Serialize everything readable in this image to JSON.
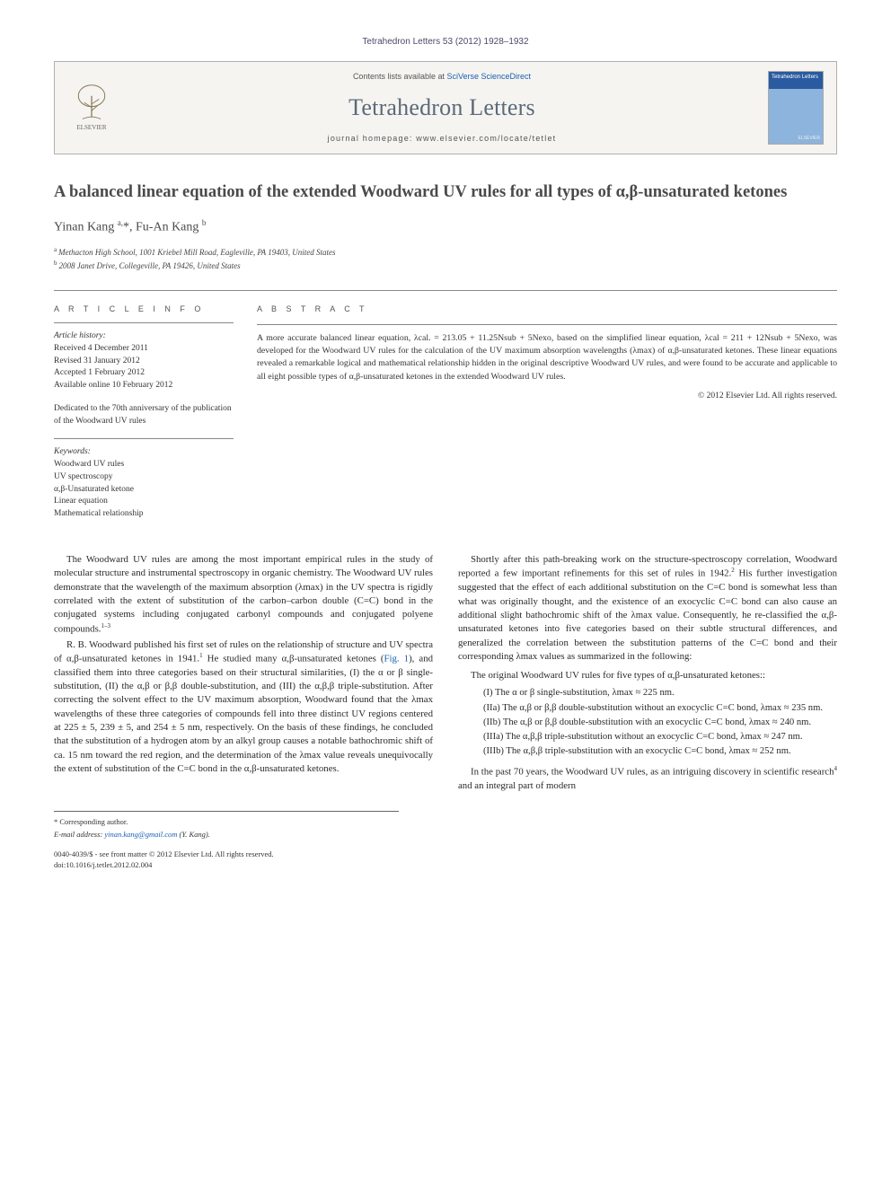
{
  "header": {
    "citation": "Tetrahedron Letters 53 (2012) 1928–1932",
    "contents_prefix": "Contents lists available at ",
    "contents_link": "SciVerse ScienceDirect",
    "journal_name": "Tetrahedron Letters",
    "homepage_prefix": "journal homepage: ",
    "homepage_url": "www.elsevier.com/locate/tetlet",
    "elsevier_label": "ELSEVIER",
    "cover_title": "Tetrahedron\nLetters",
    "cover_pub": "ELSEVIER"
  },
  "title": "A balanced linear equation of the extended Woodward UV rules for all types of α,β-unsaturated ketones",
  "authors_html": "Yinan Kang <sup>a,</sup><span class='corr'>*</span>, Fu-An Kang <sup>b</sup>",
  "affiliations": [
    {
      "sup": "a",
      "text": "Methacton High School, 1001 Kriebel Mill Road, Eagleville, PA 19403, United States"
    },
    {
      "sup": "b",
      "text": "2008 Janet Drive, Collegeville, PA 19426, United States"
    }
  ],
  "article_info": {
    "heading": "A R T I C L E   I N F O",
    "history_label": "Article history:",
    "history": [
      "Received 4 December 2011",
      "Revised 31 January 2012",
      "Accepted 1 February 2012",
      "Available online 10 February 2012"
    ],
    "dedication": "Dedicated to the 70th anniversary of the publication of the Woodward UV rules",
    "keywords_label": "Keywords:",
    "keywords": [
      "Woodward UV rules",
      "UV spectroscopy",
      "α,β-Unsaturated ketone",
      "Linear equation",
      "Mathematical relationship"
    ]
  },
  "abstract": {
    "heading": "A B S T R A C T",
    "text": "A more accurate balanced linear equation, λcal. = 213.05 + 11.25Nsub + 5Nexo, based on the simplified linear equation, λcal = 211 + 12Nsub + 5Nexo, was developed for the Woodward UV rules for the calculation of the UV maximum absorption wavelengths (λmax) of α,β-unsaturated ketones. These linear equations revealed a remarkable logical and mathematical relationship hidden in the original descriptive Woodward UV rules, and were found to be accurate and applicable to all eight possible types of α,β-unsaturated ketones in the extended Woodward UV rules.",
    "copyright": "© 2012 Elsevier Ltd. All rights reserved."
  },
  "body": {
    "p1": "The Woodward UV rules are among the most important empirical rules in the study of molecular structure and instrumental spectroscopy in organic chemistry. The Woodward UV rules demonstrate that the wavelength of the maximum absorption (λmax) in the UV spectra is rigidly correlated with the extent of substitution of the carbon–carbon double (C=C) bond in the conjugated systems including conjugated carbonyl compounds and conjugated polyene compounds.",
    "p1_ref": "1–3",
    "p2a": "R. B. Woodward published his first set of rules on the relationship of structure and UV spectra of α,β-unsaturated ketones in 1941.",
    "p2_ref1": "1",
    "p2b": " He studied many α,β-unsaturated ketones (",
    "p2_fig": "Fig. 1",
    "p2c": "), and classified them into three categories based on their structural similarities, (I) the α or β single-substitution, (II) the α,β or β,β double-substitution, and (III) the α,β,β triple-substitution. After correcting the solvent effect to the UV maximum absorption, Woodward found that the λmax wavelengths of these three categories of compounds fell into three distinct UV regions centered at 225 ± 5, 239 ± 5, and 254 ± 5 nm, respectively. On the basis of these findings, he concluded that the substitution of a hydrogen atom by an alkyl group causes a notable bathochromic shift of ca. 15 nm toward the red region, and the determination of the λmax value reveals unequivocally the extent of substitution of the C=C bond in the α,β-unsaturated ketones.",
    "p3a": "Shortly after this path-breaking work on the structure-spectroscopy correlation, Woodward reported a few important refinements for this set of rules in 1942.",
    "p3_ref": "2",
    "p3b": " His further investigation suggested that the effect of each additional substitution on the C=C bond is somewhat less than what was originally thought, and the existence of an exocyclic C=C bond can also cause an additional slight bathochromic shift of the λmax value. Consequently, he re-classified the α,β-unsaturated ketones into five categories based on their subtle structural differences, and generalized the correlation between the substitution patterns of the C=C bond and their corresponding λmax values as summarized in the following:",
    "rules_intro": "The original Woodward UV rules for five types of α,β-unsaturated ketones::",
    "rules": [
      "(I)   The α or β single-substitution, λmax ≈ 225 nm.",
      "(IIa) The α,β or β,β double-substitution without an exocyclic C=C bond, λmax ≈ 235 nm.",
      "(IIb) The α,β or β,β double-substitution with an exocyclic C=C bond, λmax ≈ 240 nm.",
      "(IIIa) The α,β,β triple-substitution without an exocyclic C=C bond, λmax ≈ 247 nm.",
      "(IIIb) The α,β,β triple-substitution with an exocyclic C=C bond, λmax ≈ 252 nm."
    ],
    "p4a": "In the past 70 years, the Woodward UV rules, as an intriguing discovery in scientific research",
    "p4_ref": "4",
    "p4b": " and an integral part of modern"
  },
  "footer": {
    "corr_label": "* Corresponding author.",
    "email_label": "E-mail address:",
    "email": "yinan.kang@gmail.com",
    "email_person": " (Y. Kang).",
    "issn": "0040-4039/$ - see front matter © 2012 Elsevier Ltd. All rights reserved.",
    "doi": "doi:10.1016/j.tetlet.2012.02.004"
  },
  "colors": {
    "link": "#1a5fb4",
    "text": "#2a2a2a",
    "muted": "#555555",
    "rule": "#888888"
  }
}
